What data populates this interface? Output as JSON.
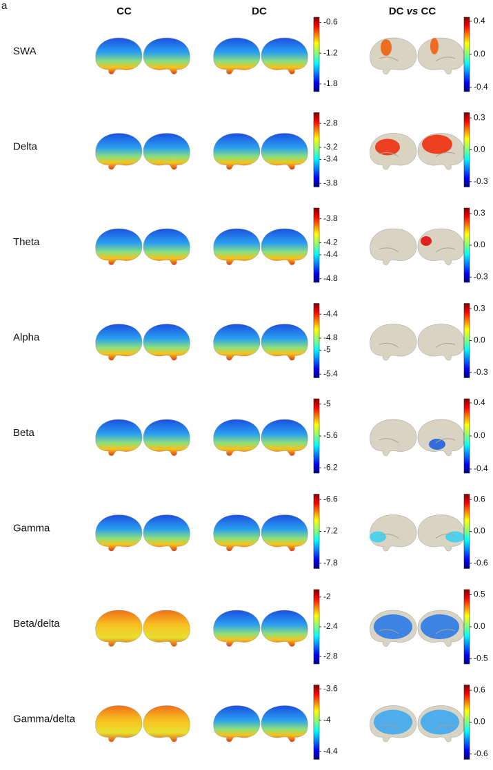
{
  "panel_label": "a",
  "column_headers": [
    "CC",
    "DC",
    [
      "DC",
      "vs",
      "CC"
    ]
  ],
  "rows": [
    {
      "label": "SWA",
      "scale": {
        "ylim": [
          -1.95,
          -0.5
        ],
        "ticks": [
          -0.6,
          -1.2,
          -1.8
        ]
      },
      "contrast": {
        "ylim": [
          -0.45,
          0.45
        ],
        "ticks": [
          0.4,
          {
            "value": 0,
            "label": "0.0"
          },
          -0.4
        ]
      }
    },
    {
      "label": "Delta",
      "scale": {
        "ylim": [
          -3.86,
          -2.62
        ],
        "ticks": [
          -2.8,
          -3.2,
          -3.4,
          -3.8
        ]
      },
      "contrast": {
        "ylim": [
          -0.35,
          0.35
        ],
        "ticks": [
          0.3,
          {
            "value": 0,
            "label": "0.0"
          },
          -0.3
        ]
      }
    },
    {
      "label": "Theta",
      "scale": {
        "ylim": [
          -4.86,
          -3.62
        ],
        "ticks": [
          -3.8,
          -4.2,
          -4.4,
          -4.8
        ]
      },
      "contrast": {
        "ylim": [
          -0.35,
          0.35
        ],
        "ticks": [
          0.3,
          {
            "value": 0,
            "label": "0.0"
          },
          -0.3
        ]
      }
    },
    {
      "label": "Alpha",
      "scale": {
        "ylim": [
          -5.46,
          -4.22
        ],
        "ticks": [
          -4.4,
          -4.8,
          -5.0,
          -5.4
        ]
      },
      "contrast": {
        "ylim": [
          -0.35,
          0.35
        ],
        "ticks": [
          0.3,
          {
            "value": 0,
            "label": "0.0"
          },
          -0.3
        ]
      }
    },
    {
      "label": "Beta",
      "scale": {
        "ylim": [
          -6.3,
          -4.9
        ],
        "ticks": [
          -5.0,
          -5.6,
          -6.2
        ]
      },
      "contrast": {
        "ylim": [
          -0.45,
          0.45
        ],
        "ticks": [
          0.4,
          {
            "value": 0,
            "label": "0.0"
          },
          -0.4
        ]
      }
    },
    {
      "label": "Gamma",
      "scale": {
        "ylim": [
          -7.9,
          -6.5
        ],
        "ticks": [
          -6.6,
          -7.2,
          -7.8
        ]
      },
      "contrast": {
        "ylim": [
          -0.7,
          0.7
        ],
        "ticks": [
          0.6,
          {
            "value": 0,
            "label": "0.0"
          },
          -0.6
        ]
      }
    },
    {
      "label": "Beta/delta",
      "scale": {
        "ylim": [
          -2.9,
          -1.9
        ],
        "ticks": [
          -2.0,
          -2.4,
          -2.8
        ]
      },
      "contrast": {
        "ylim": [
          -0.58,
          0.58
        ],
        "ticks": [
          0.5,
          {
            "value": 0,
            "label": "0.0"
          },
          -0.5
        ]
      }
    },
    {
      "label": "Gamma/delta",
      "scale": {
        "ylim": [
          -4.5,
          -3.55
        ],
        "ticks": [
          -3.6,
          -4.0,
          -4.4
        ]
      },
      "contrast": {
        "ylim": [
          -0.7,
          0.7
        ],
        "ticks": [
          0.6,
          {
            "value": 0,
            "label": "0.0"
          },
          -0.6
        ]
      }
    }
  ]
}
